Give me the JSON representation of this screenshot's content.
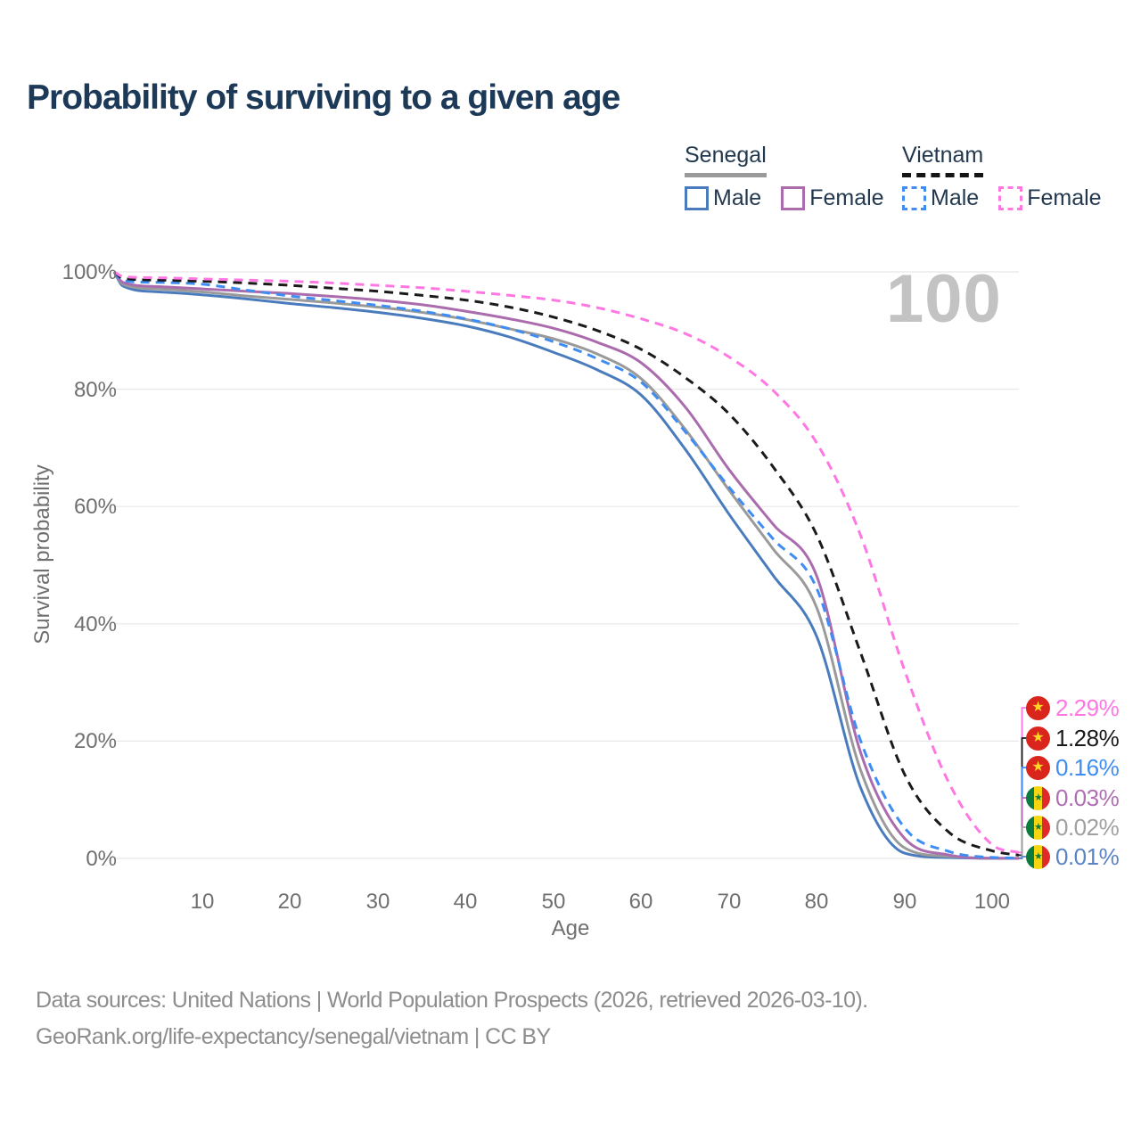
{
  "title": "Probability of surviving to a given age",
  "watermark": "100",
  "legend": {
    "groups": [
      {
        "name": "Senegal",
        "line_style": "solid",
        "underline_color": "#9a9a9a",
        "items": [
          {
            "label": "Male",
            "color": "#4a7cbd"
          },
          {
            "label": "Female",
            "color": "#ab6cae"
          }
        ]
      },
      {
        "name": "Vietnam",
        "line_style": "dashed",
        "underline_color": "#141414",
        "items": [
          {
            "label": "Male",
            "color": "#3f8df2"
          },
          {
            "label": "Female",
            "color": "#ff77e3"
          }
        ]
      }
    ]
  },
  "chart_data": {
    "type": "line",
    "xlabel": "Age",
    "ylabel": "Survival probability",
    "x_range": [
      0,
      103
    ],
    "y_range": [
      0,
      100
    ],
    "grid": "horizontal",
    "x_ticks": [
      "10",
      "20",
      "30",
      "40",
      "50",
      "60",
      "70",
      "80",
      "90",
      "100"
    ],
    "y_ticks": [
      {
        "value": 100,
        "label": "100%"
      },
      {
        "value": 80,
        "label": "80%"
      },
      {
        "value": 60,
        "label": "60%"
      },
      {
        "value": 40,
        "label": "40%"
      },
      {
        "value": 20,
        "label": "20%"
      },
      {
        "value": 0,
        "label": "0%"
      }
    ],
    "ages": [
      0,
      1,
      5,
      10,
      15,
      20,
      25,
      30,
      35,
      40,
      45,
      50,
      55,
      60,
      65,
      70,
      75,
      80,
      85,
      90,
      95,
      100,
      103
    ],
    "series": [
      {
        "id": "senegal_male",
        "name": "Senegal Male",
        "color": "#4a7cbd",
        "dash": false,
        "values": [
          100,
          97.6,
          96.6,
          96.1,
          95.4,
          94.6,
          93.9,
          93.1,
          92.1,
          90.8,
          88.9,
          86.3,
          83.3,
          79.0,
          69.8,
          58.7,
          48.3,
          37.8,
          12.0,
          0.9,
          0.15,
          0.01,
          0.005
        ]
      },
      {
        "id": "senegal_total",
        "name": "Senegal Both sexes",
        "color": "#9a9a9a",
        "dash": false,
        "values": [
          100,
          97.9,
          97.1,
          96.6,
          95.9,
          95.3,
          94.7,
          94.0,
          93.1,
          91.9,
          90.3,
          88.6,
          86.0,
          81.8,
          73.2,
          62.8,
          52.8,
          42.7,
          15.0,
          1.8,
          0.35,
          0.02,
          0.01
        ]
      },
      {
        "id": "senegal_female",
        "name": "Senegal Female",
        "color": "#ab6cae",
        "dash": false,
        "values": [
          100,
          98.2,
          97.5,
          97.1,
          96.7,
          96.3,
          95.8,
          95.2,
          94.4,
          93.3,
          92.0,
          90.4,
          88.0,
          84.5,
          77.0,
          66.3,
          57.0,
          48.1,
          18.0,
          3.4,
          0.6,
          0.03,
          0.015
        ]
      },
      {
        "id": "vietnam_male",
        "name": "Vietnam Male",
        "color": "#3f8df2",
        "dash": true,
        "values": [
          100,
          98.5,
          98.2,
          97.9,
          96.9,
          95.9,
          95.1,
          94.3,
          93.3,
          92.0,
          90.3,
          88.1,
          85.2,
          81.2,
          72.8,
          63.3,
          54.5,
          46.0,
          20.0,
          5.2,
          1.2,
          0.16,
          0.07
        ]
      },
      {
        "id": "vietnam_total",
        "name": "Vietnam Both sexes",
        "color": "#1a1a1a",
        "dash": true,
        "values": [
          100,
          98.9,
          98.6,
          98.4,
          98.1,
          97.7,
          97.2,
          96.7,
          96.0,
          95.2,
          94.0,
          92.3,
          90.0,
          86.8,
          82.0,
          75.8,
          66.8,
          55.1,
          35.0,
          14.3,
          4.5,
          1.28,
          0.55
        ]
      },
      {
        "id": "vietnam_female",
        "name": "Vietnam Female",
        "color": "#ff77e3",
        "dash": true,
        "values": [
          100,
          99.2,
          99.0,
          98.8,
          98.6,
          98.4,
          98.1,
          97.7,
          97.3,
          96.7,
          96.0,
          95.2,
          93.9,
          92.0,
          89.5,
          85.5,
          79.8,
          70.8,
          55.0,
          32.0,
          13.0,
          2.29,
          1.0
        ]
      }
    ],
    "end_labels": [
      {
        "label": "2.29%",
        "series": "vietnam_female",
        "flag": "vietnam",
        "color": "#ff77e3"
      },
      {
        "label": "1.28%",
        "series": "vietnam_total",
        "flag": "vietnam",
        "color": "#1a1a1a"
      },
      {
        "label": "0.16%",
        "series": "vietnam_male",
        "flag": "vietnam",
        "color": "#3f8df2"
      },
      {
        "label": "0.03%",
        "series": "senegal_female",
        "flag": "senegal",
        "color": "#b06fb3"
      },
      {
        "label": "0.02%",
        "series": "senegal_total",
        "flag": "senegal",
        "color": "#a0a0a0"
      },
      {
        "label": "0.01%",
        "series": "senegal_male",
        "flag": "senegal",
        "color": "#5b84c4"
      }
    ]
  },
  "footer": {
    "line1": "Data sources: United Nations | World Population Prospects (2026, retrieved 2026-03-10).",
    "line2": "GeoRank.org/life-expectancy/senegal/vietnam | CC BY"
  }
}
